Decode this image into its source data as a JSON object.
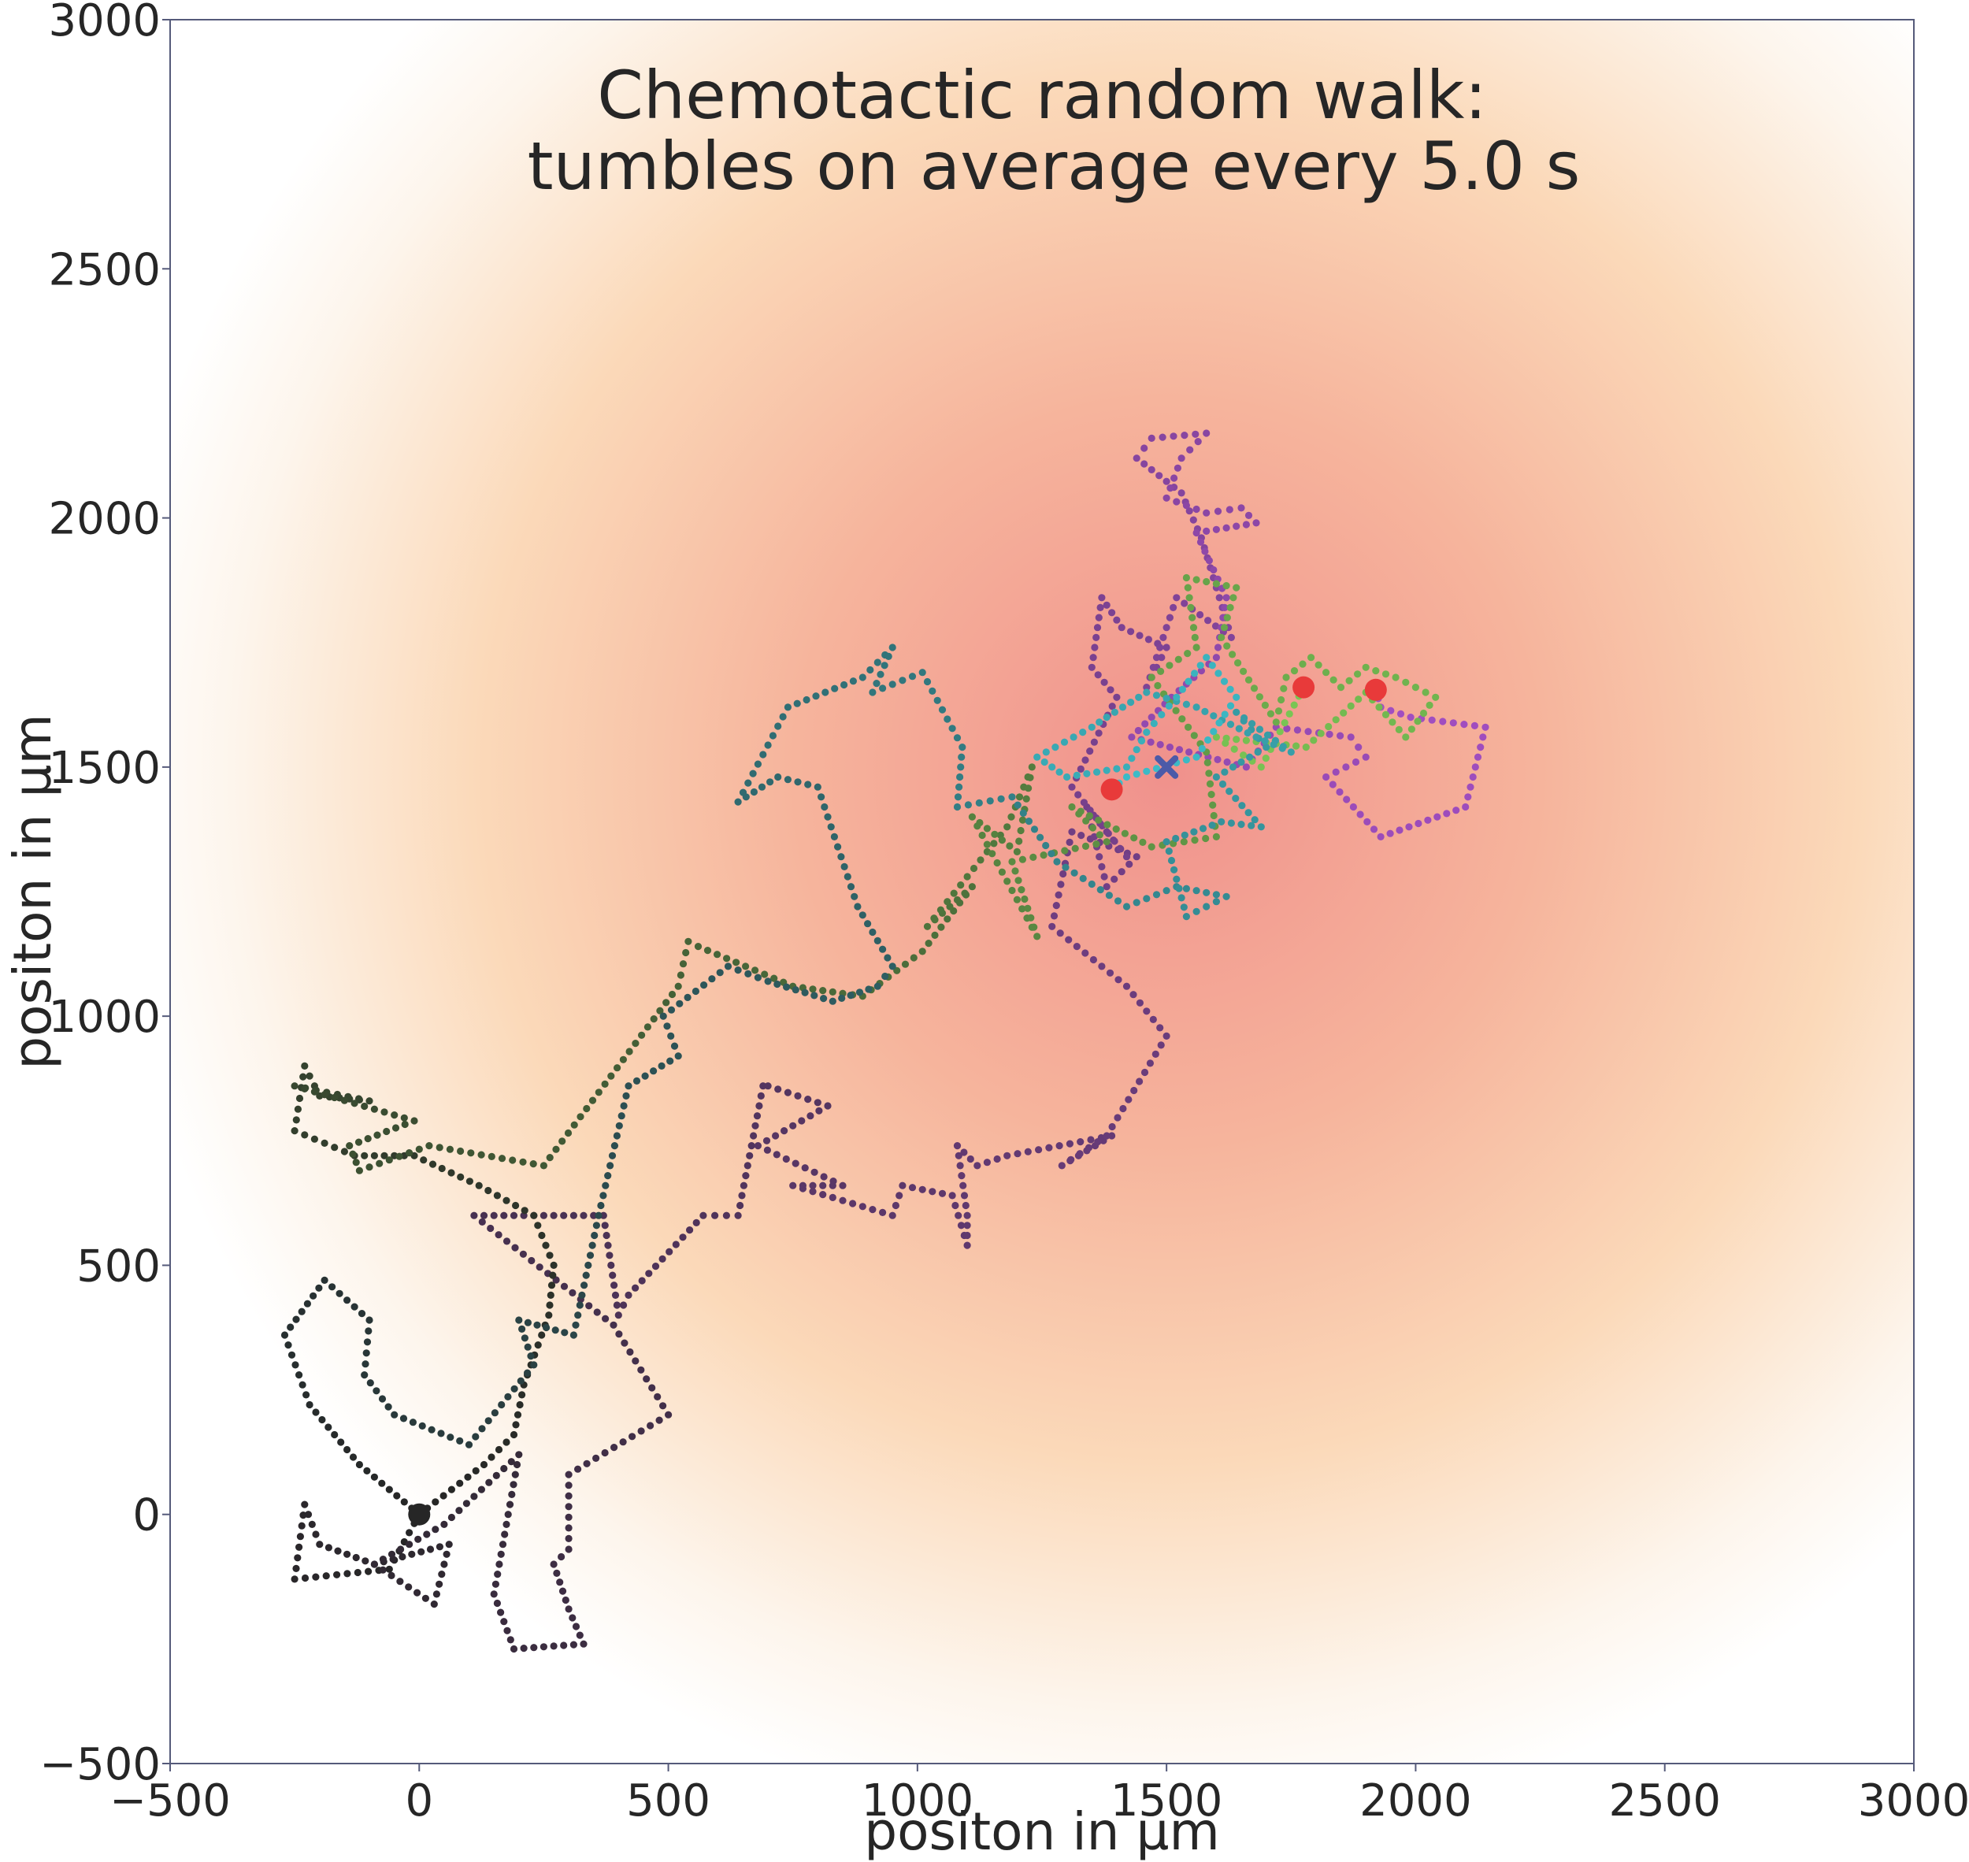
{
  "chart_data": {
    "type": "scatter",
    "title": [
      "Chemotactic random walk:",
      "tumbles on average every 5.0 s"
    ],
    "xlabel": "positon in µm",
    "ylabel": "positon in µm",
    "xlim": [
      -500,
      3000
    ],
    "ylim": [
      -500,
      3000
    ],
    "xticks": [
      -500,
      0,
      500,
      1000,
      1500,
      2000,
      2500,
      3000
    ],
    "yticks": [
      -500,
      0,
      500,
      1000,
      1500,
      2000,
      2500,
      3000
    ],
    "xtick_labels": [
      "−500",
      "0",
      "500",
      "1000",
      "1500",
      "2000",
      "2500",
      "3000"
    ],
    "ytick_labels": [
      "−500",
      "0",
      "500",
      "1000",
      "1500",
      "2000",
      "2500",
      "3000"
    ],
    "grid": false,
    "background": {
      "type": "radial-gradient",
      "center": [
        1500,
        1500
      ],
      "colors": [
        "#f0918c",
        "#f6b49c",
        "#fbd9b9",
        "#fdf5ec",
        "#ffffff"
      ]
    },
    "start_marker": {
      "x": 0,
      "y": 0,
      "color": "#262626"
    },
    "target_marker": {
      "x": 1500,
      "y": 1500,
      "color": "#4c5aa8",
      "shape": "x"
    },
    "end_markers": [
      {
        "x": 1390,
        "y": 1455,
        "color": "#e83a3a"
      },
      {
        "x": 1775,
        "y": 1660,
        "color": "#e83a3a"
      },
      {
        "x": 1920,
        "y": 1655,
        "color": "#e83a3a"
      }
    ],
    "series": [
      {
        "color_start": "#262626",
        "color_end": "#a24ec2",
        "points": [
          [
            0,
            0
          ],
          [
            -60,
            -110
          ],
          [
            -250,
            -130
          ],
          [
            -230,
            20
          ],
          [
            -200,
            -60
          ],
          [
            -90,
            -100
          ],
          [
            60,
            -60
          ],
          [
            30,
            -180
          ],
          [
            -90,
            -100
          ],
          [
            50,
            -20
          ],
          [
            200,
            120
          ],
          [
            150,
            -160
          ],
          [
            190,
            -270
          ],
          [
            330,
            -260
          ],
          [
            300,
            -190
          ],
          [
            270,
            -100
          ],
          [
            300,
            -70
          ],
          [
            300,
            80
          ],
          [
            500,
            200
          ],
          [
            390,
            380
          ],
          [
            110,
            600
          ],
          [
            230,
            600
          ],
          [
            370,
            600
          ],
          [
            400,
            400
          ],
          [
            420,
            440
          ],
          [
            570,
            600
          ],
          [
            640,
            600
          ],
          [
            690,
            860
          ],
          [
            700,
            860
          ],
          [
            820,
            820
          ],
          [
            680,
            740
          ],
          [
            850,
            660
          ],
          [
            750,
            660
          ],
          [
            950,
            600
          ],
          [
            970,
            660
          ],
          [
            1070,
            640
          ],
          [
            1100,
            540
          ],
          [
            1100,
            600
          ],
          [
            1080,
            740
          ],
          [
            1120,
            700
          ],
          [
            1180,
            720
          ],
          [
            1390,
            760
          ],
          [
            1290,
            700
          ],
          [
            1380,
            760
          ],
          [
            1500,
            960
          ],
          [
            1420,
            1060
          ],
          [
            1270,
            1180
          ],
          [
            1310,
            1370
          ],
          [
            1440,
            1320
          ],
          [
            1380,
            1260
          ],
          [
            1340,
            1420
          ],
          [
            1420,
            1320
          ],
          [
            1310,
            1460
          ],
          [
            1400,
            1640
          ],
          [
            1350,
            1700
          ],
          [
            1370,
            1840
          ],
          [
            1410,
            1780
          ],
          [
            1500,
            1740
          ],
          [
            1460,
            1660
          ],
          [
            1520,
            1840
          ],
          [
            1630,
            1760
          ],
          [
            1570,
            1960
          ],
          [
            1530,
            2050
          ],
          [
            1440,
            2120
          ],
          [
            1470,
            2160
          ],
          [
            1580,
            2170
          ],
          [
            1530,
            2120
          ],
          [
            1500,
            2040
          ],
          [
            1580,
            2010
          ],
          [
            1650,
            2020
          ],
          [
            1680,
            1990
          ],
          [
            1560,
            1970
          ],
          [
            1620,
            1840
          ],
          [
            1600,
            1720
          ],
          [
            1510,
            1640
          ],
          [
            1430,
            1560
          ],
          [
            1660,
            1500
          ],
          [
            1720,
            1580
          ],
          [
            1870,
            1560
          ],
          [
            1900,
            1520
          ],
          [
            1820,
            1480
          ],
          [
            1930,
            1360
          ],
          [
            2100,
            1420
          ],
          [
            2140,
            1580
          ],
          [
            1990,
            1600
          ],
          [
            1930,
            1620
          ],
          [
            1920,
            1655
          ]
        ]
      },
      {
        "color_start": "#262626",
        "color_end": "#7ac654",
        "points": [
          [
            0,
            0
          ],
          [
            130,
            100
          ],
          [
            190,
            160
          ],
          [
            210,
            260
          ],
          [
            260,
            400
          ],
          [
            270,
            500
          ],
          [
            230,
            600
          ],
          [
            120,
            660
          ],
          [
            -10,
            720
          ],
          [
            -130,
            720
          ],
          [
            -250,
            770
          ],
          [
            -230,
            900
          ],
          [
            -200,
            840
          ],
          [
            -100,
            830
          ],
          [
            -250,
            860
          ],
          [
            -10,
            790
          ],
          [
            -140,
            740
          ],
          [
            -120,
            690
          ],
          [
            20,
            740
          ],
          [
            250,
            700
          ],
          [
            520,
            1060
          ],
          [
            540,
            1150
          ],
          [
            560,
            1140
          ],
          [
            750,
            1060
          ],
          [
            890,
            1040
          ],
          [
            1010,
            1130
          ],
          [
            1110,
            1260
          ],
          [
            1020,
            1180
          ],
          [
            1180,
            1380
          ],
          [
            1230,
            1500
          ],
          [
            1200,
            1330
          ],
          [
            1110,
            1400
          ],
          [
            1240,
            1160
          ],
          [
            1190,
            1310
          ],
          [
            1380,
            1350
          ],
          [
            1310,
            1420
          ],
          [
            1470,
            1340
          ],
          [
            1600,
            1360
          ],
          [
            1580,
            1530
          ],
          [
            1470,
            1680
          ],
          [
            1560,
            1740
          ],
          [
            1540,
            1880
          ],
          [
            1640,
            1860
          ],
          [
            1610,
            1760
          ],
          [
            1720,
            1590
          ],
          [
            1740,
            1680
          ],
          [
            1790,
            1720
          ],
          [
            1850,
            1660
          ],
          [
            1900,
            1700
          ],
          [
            1960,
            1680
          ],
          [
            2040,
            1640
          ],
          [
            1980,
            1560
          ],
          [
            1900,
            1650
          ],
          [
            1780,
            1540
          ],
          [
            1600,
            1560
          ],
          [
            1690,
            1500
          ],
          [
            1775,
            1660
          ]
        ]
      },
      {
        "color_start": "#262626",
        "color_end": "#3cbcc8",
        "points": [
          [
            0,
            0
          ],
          [
            -120,
            100
          ],
          [
            -220,
            220
          ],
          [
            -270,
            360
          ],
          [
            -190,
            470
          ],
          [
            -100,
            390
          ],
          [
            -110,
            280
          ],
          [
            -50,
            200
          ],
          [
            100,
            140
          ],
          [
            230,
            300
          ],
          [
            200,
            390
          ],
          [
            310,
            360
          ],
          [
            360,
            600
          ],
          [
            420,
            860
          ],
          [
            520,
            920
          ],
          [
            490,
            1000
          ],
          [
            620,
            1100
          ],
          [
            700,
            1070
          ],
          [
            830,
            1030
          ],
          [
            920,
            1060
          ],
          [
            950,
            1100
          ],
          [
            880,
            1220
          ],
          [
            800,
            1460
          ],
          [
            720,
            1480
          ],
          [
            640,
            1430
          ],
          [
            740,
            1620
          ],
          [
            890,
            1680
          ],
          [
            950,
            1740
          ],
          [
            910,
            1650
          ],
          [
            1010,
            1690
          ],
          [
            1090,
            1540
          ],
          [
            1080,
            1420
          ],
          [
            1190,
            1440
          ],
          [
            1280,
            1310
          ],
          [
            1420,
            1220
          ],
          [
            1520,
            1260
          ],
          [
            1620,
            1240
          ],
          [
            1540,
            1200
          ],
          [
            1500,
            1350
          ],
          [
            1610,
            1390
          ],
          [
            1690,
            1380
          ],
          [
            1600,
            1480
          ],
          [
            1700,
            1540
          ],
          [
            1640,
            1610
          ],
          [
            1750,
            1530
          ],
          [
            1680,
            1560
          ],
          [
            1560,
            1620
          ],
          [
            1460,
            1650
          ],
          [
            1380,
            1600
          ],
          [
            1350,
            1580
          ],
          [
            1240,
            1520
          ],
          [
            1300,
            1480
          ],
          [
            1420,
            1500
          ],
          [
            1460,
            1570
          ],
          [
            1520,
            1640
          ],
          [
            1580,
            1720
          ],
          [
            1640,
            1640
          ],
          [
            1560,
            1520
          ],
          [
            1420,
            1480
          ],
          [
            1390,
            1455
          ]
        ]
      }
    ]
  }
}
